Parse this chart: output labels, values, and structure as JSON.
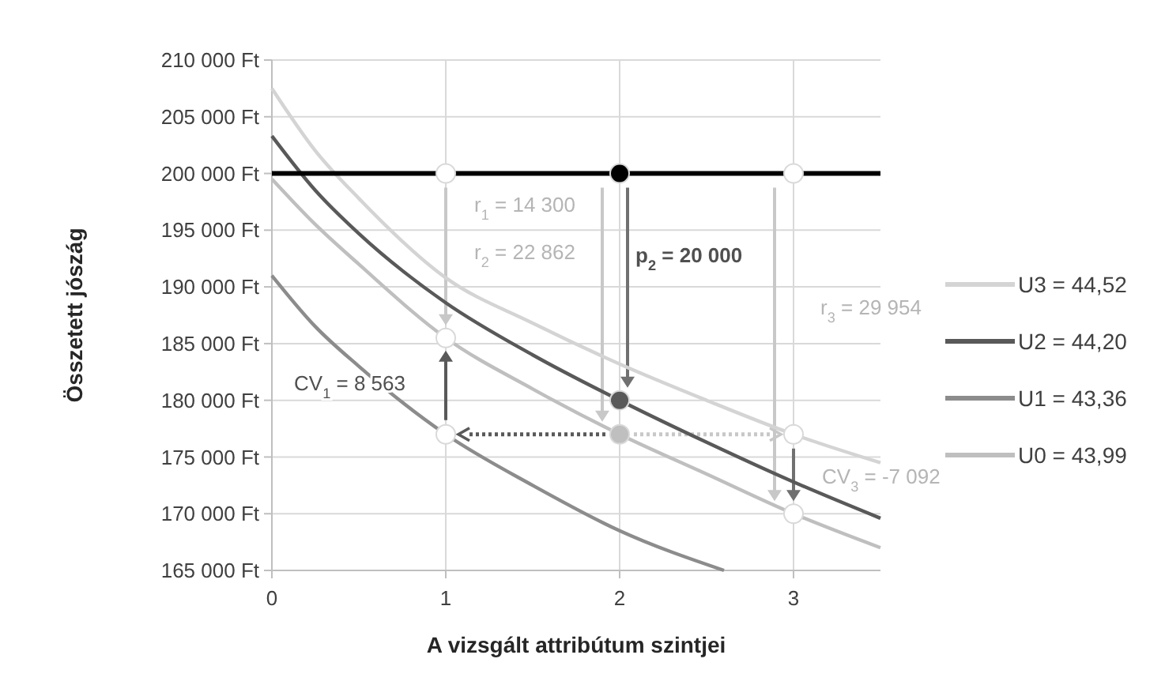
{
  "chart_data": {
    "type": "line",
    "xlabel": "A vizsgált attribútum szintjei",
    "ylabel": "Összetett jószág",
    "xlim": [
      0,
      3.5
    ],
    "xticks": [
      0,
      1,
      2,
      3
    ],
    "ylim": [
      165000,
      210000
    ],
    "yticks": [
      {
        "value": 165000,
        "label": "165 000 Ft"
      },
      {
        "value": 170000,
        "label": "170 000 Ft"
      },
      {
        "value": 175000,
        "label": "175 000 Ft"
      },
      {
        "value": 180000,
        "label": "180 000 Ft"
      },
      {
        "value": 185000,
        "label": "185 000 Ft"
      },
      {
        "value": 190000,
        "label": "190 000 Ft"
      },
      {
        "value": 195000,
        "label": "195 000 Ft"
      },
      {
        "value": 200000,
        "label": "200 000 Ft"
      },
      {
        "value": 205000,
        "label": "205 000 Ft"
      },
      {
        "value": 210000,
        "label": "210 000 Ft"
      }
    ],
    "grid": true,
    "legend": "right",
    "series": [
      {
        "name": "U3 = 44,52",
        "color": "#d4d4d4",
        "x": [
          0,
          0.25,
          0.5,
          1,
          1.5,
          2,
          2.5,
          3,
          3.5
        ],
        "values": [
          207500,
          202000,
          197800,
          190800,
          186800,
          183200,
          180000,
          177000,
          174500
        ]
      },
      {
        "name": "U2 = 44,20",
        "color": "#595959",
        "x": [
          0,
          0.25,
          0.5,
          1,
          1.5,
          2,
          2.5,
          3,
          3.5
        ],
        "values": [
          203300,
          198500,
          194700,
          188600,
          184000,
          180000,
          176300,
          172800,
          169600
        ]
      },
      {
        "name": "U1 = 43,36",
        "color": "#8c8c8c",
        "x": [
          0,
          0.25,
          0.5,
          1,
          1.5,
          2,
          2.6
        ],
        "values": [
          191000,
          186500,
          183000,
          177000,
          172500,
          168500,
          165000
        ]
      },
      {
        "name": "U0 = 43,99",
        "color": "#bfbfbf",
        "x": [
          0,
          0.25,
          0.5,
          1,
          1.5,
          2,
          2.5,
          3,
          3.5
        ],
        "values": [
          199500,
          195500,
          192000,
          185500,
          181000,
          177000,
          173500,
          170000,
          167000
        ]
      },
      {
        "type": "scatter",
        "marker": "circle",
        "x": [
          1,
          2,
          3,
          1,
          2,
          2,
          1,
          3,
          3
        ],
        "values": [
          200000,
          200000,
          200000,
          185500,
          180000,
          177000,
          177000,
          177000,
          170000
        ],
        "colors": [
          "#ffffff",
          "#000000",
          "#ffffff",
          "#ffffff",
          "#595959",
          "#bfbfbf",
          "#ffffff",
          "#ffffff",
          "#ffffff"
        ]
      }
    ],
    "ref_lines": [
      {
        "axis": "y",
        "value": 200000,
        "color": "#000000"
      }
    ],
    "annotations": [
      "r$_{1}$ = 14 300",
      "r$_{2}$ = 22 862",
      "p$_{2}$ = 20 000",
      "r$_{3}$ = 29 954",
      "CV$_{1}$ = 8 563",
      "CV$_{3}$ = -7 092"
    ]
  }
}
